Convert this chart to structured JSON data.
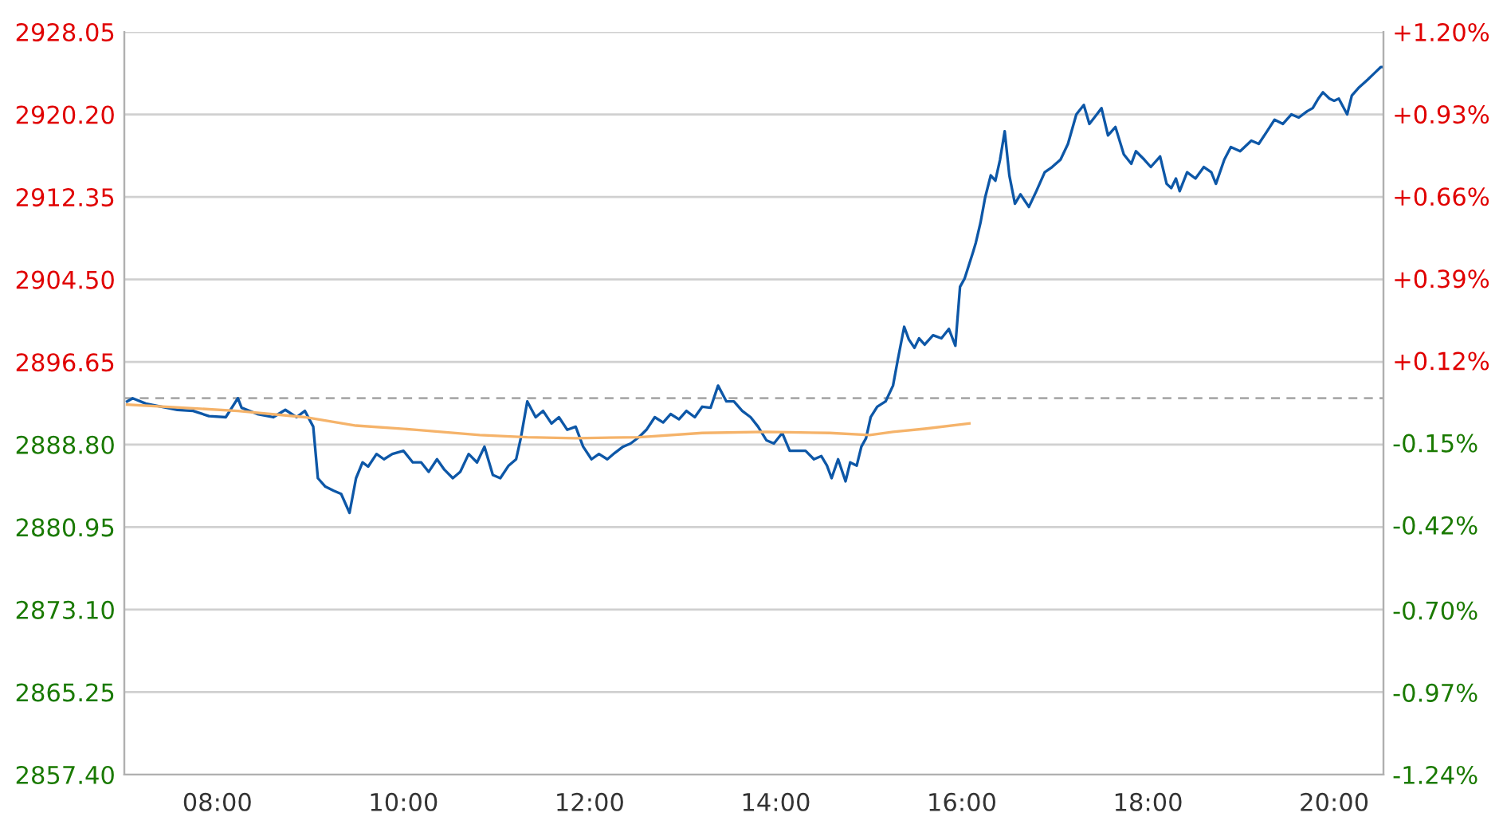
{
  "chart_data": {
    "type": "line",
    "series": [
      {
        "color": "#0d57a7",
        "x": [
          7.03,
          7.09,
          7.23,
          7.4,
          7.57,
          7.74,
          7.91,
          8.09,
          8.22,
          8.26,
          8.43,
          8.6,
          8.73,
          8.85,
          8.94,
          9.03,
          9.08,
          9.16,
          9.25,
          9.33,
          9.42,
          9.49,
          9.56,
          9.62,
          9.71,
          9.79,
          9.88,
          10.0,
          10.1,
          10.19,
          10.27,
          10.36,
          10.44,
          10.53,
          10.61,
          10.7,
          10.79,
          10.87,
          10.96,
          11.04,
          11.13,
          11.21,
          11.26,
          11.33,
          11.42,
          11.5,
          11.59,
          11.67,
          11.76,
          11.85,
          11.93,
          12.02,
          12.1,
          12.19,
          12.27,
          12.36,
          12.44,
          12.53,
          12.61,
          12.7,
          12.79,
          12.87,
          12.96,
          13.04,
          13.13,
          13.21,
          13.3,
          13.38,
          13.47,
          13.55,
          13.64,
          13.73,
          13.81,
          13.9,
          13.98,
          14.07,
          14.15,
          14.24,
          14.32,
          14.41,
          14.49,
          14.55,
          14.6,
          14.67,
          14.75,
          14.8,
          14.87,
          14.92,
          14.97,
          15.02,
          15.09,
          15.18,
          15.26,
          15.31,
          15.38,
          15.43,
          15.49,
          15.54,
          15.6,
          15.69,
          15.78,
          15.86,
          15.93,
          15.98,
          16.03,
          16.12,
          16.15,
          16.2,
          16.25,
          16.31,
          16.36,
          16.41,
          16.46,
          16.51,
          16.57,
          16.63,
          16.72,
          16.8,
          16.89,
          16.97,
          17.06,
          17.14,
          17.23,
          17.31,
          17.37,
          17.45,
          17.5,
          17.57,
          17.65,
          17.74,
          17.82,
          17.87,
          17.96,
          18.03,
          18.13,
          18.2,
          18.25,
          18.3,
          18.34,
          18.42,
          18.51,
          18.6,
          18.68,
          18.73,
          18.82,
          18.89,
          18.99,
          19.11,
          19.19,
          19.28,
          19.36,
          19.45,
          19.54,
          19.62,
          19.71,
          19.77,
          19.83,
          19.88,
          19.95,
          20.0,
          20.05,
          20.14,
          20.19,
          20.26,
          20.36,
          20.43,
          20.5,
          20.53
        ],
        "values": [
          2892.9,
          2893.2,
          2892.7,
          2892.4,
          2892.1,
          2892.0,
          2891.5,
          2891.4,
          2893.2,
          2892.3,
          2891.7,
          2891.4,
          2892.1,
          2891.4,
          2892.0,
          2890.5,
          2885.6,
          2884.8,
          2884.4,
          2884.1,
          2882.3,
          2885.6,
          2887.1,
          2886.7,
          2887.9,
          2887.4,
          2887.9,
          2888.2,
          2887.1,
          2887.1,
          2886.2,
          2887.4,
          2886.4,
          2885.6,
          2886.2,
          2887.9,
          2887.1,
          2888.6,
          2885.9,
          2885.6,
          2886.8,
          2887.4,
          2889.4,
          2892.9,
          2891.4,
          2892.0,
          2890.8,
          2891.4,
          2890.2,
          2890.5,
          2888.6,
          2887.4,
          2887.9,
          2887.4,
          2888.0,
          2888.6,
          2888.9,
          2889.5,
          2890.2,
          2891.4,
          2890.9,
          2891.7,
          2891.2,
          2892.0,
          2891.4,
          2892.4,
          2892.3,
          2894.4,
          2892.9,
          2892.9,
          2892.0,
          2891.4,
          2890.5,
          2889.2,
          2888.9,
          2889.9,
          2888.2,
          2888.2,
          2888.2,
          2887.4,
          2887.7,
          2886.8,
          2885.6,
          2887.4,
          2885.3,
          2887.1,
          2886.8,
          2888.6,
          2889.4,
          2891.4,
          2892.4,
          2892.9,
          2894.4,
          2896.8,
          2900.0,
          2898.8,
          2898.0,
          2898.9,
          2898.3,
          2899.2,
          2898.9,
          2899.8,
          2898.2,
          2903.8,
          2904.6,
          2907.1,
          2908.0,
          2909.9,
          2912.3,
          2914.4,
          2913.9,
          2915.9,
          2918.6,
          2914.4,
          2911.7,
          2912.6,
          2911.4,
          2912.9,
          2914.7,
          2915.2,
          2915.9,
          2917.4,
          2920.2,
          2921.1,
          2919.3,
          2920.2,
          2920.8,
          2918.2,
          2919.0,
          2916.4,
          2915.5,
          2916.7,
          2915.9,
          2915.2,
          2916.2,
          2913.6,
          2913.2,
          2914.1,
          2912.9,
          2914.7,
          2914.1,
          2915.2,
          2914.7,
          2913.6,
          2915.9,
          2917.1,
          2916.7,
          2917.7,
          2917.4,
          2918.6,
          2919.7,
          2919.3,
          2920.2,
          2919.9,
          2920.5,
          2920.8,
          2921.7,
          2922.3,
          2921.7,
          2921.5,
          2921.7,
          2920.2,
          2922.0,
          2922.7,
          2923.5,
          2924.1,
          2924.7,
          2924.7
        ]
      },
      {
        "color": "#f5b36a",
        "x": [
          7.03,
          8.22,
          8.94,
          9.49,
          10.14,
          10.82,
          11.33,
          11.85,
          12.53,
          13.21,
          13.9,
          14.58,
          15.01,
          15.26,
          15.6,
          16.08
        ],
        "values": [
          2892.6,
          2892.0,
          2891.4,
          2890.6,
          2890.2,
          2889.7,
          2889.5,
          2889.4,
          2889.5,
          2889.9,
          2890.0,
          2889.9,
          2889.7,
          2890.0,
          2890.3,
          2890.8
        ]
      }
    ],
    "xlim": [
      7.0,
      20.53
    ],
    "xticks": [
      {
        "value": 8,
        "label": "08:00"
      },
      {
        "value": 10,
        "label": "10:00"
      },
      {
        "value": 12,
        "label": "12:00"
      },
      {
        "value": 14,
        "label": "14:00"
      },
      {
        "value": 16,
        "label": "16:00"
      },
      {
        "value": 18,
        "label": "18:00"
      },
      {
        "value": 20,
        "label": "20:00"
      }
    ],
    "ylim": [
      2857.4,
      2928.05
    ],
    "yticks": [
      {
        "value": 2857.4,
        "label": "2857.40"
      },
      {
        "value": 2865.25,
        "label": "2865.25"
      },
      {
        "value": 2873.1,
        "label": "2873.10"
      },
      {
        "value": 2880.95,
        "label": "2880.95"
      },
      {
        "value": 2888.8,
        "label": "2888.80"
      },
      {
        "value": 2896.65,
        "label": "2896.65"
      },
      {
        "value": 2904.5,
        "label": "2904.50"
      },
      {
        "value": 2912.35,
        "label": "2912.35"
      },
      {
        "value": 2920.2,
        "label": "2920.20"
      },
      {
        "value": 2928.05,
        "label": "2928.05"
      }
    ],
    "y2lim": [
      -1.24,
      1.2
    ],
    "y2ticks": [
      {
        "value": -1.24,
        "label": "-1.24%"
      },
      {
        "value": -0.97,
        "label": "-0.97%"
      },
      {
        "value": -0.7,
        "label": "-0.70%"
      },
      {
        "value": -0.42,
        "label": "-0.42%"
      },
      {
        "value": -0.15,
        "label": "-0.15%"
      },
      {
        "value": 0.12,
        "label": "+0.12%"
      },
      {
        "value": 0.39,
        "label": "+0.39%"
      },
      {
        "value": 0.66,
        "label": "+0.66%"
      },
      {
        "value": 0.93,
        "label": "+0.93%"
      },
      {
        "value": 1.2,
        "label": "+1.20%"
      }
    ],
    "ref_lines": [
      {
        "axis": "y",
        "value": 2893.2,
        "color": "#aaaaaa",
        "line_style": "dashed"
      }
    ],
    "grid": "y",
    "legend": false,
    "marker": "none"
  }
}
